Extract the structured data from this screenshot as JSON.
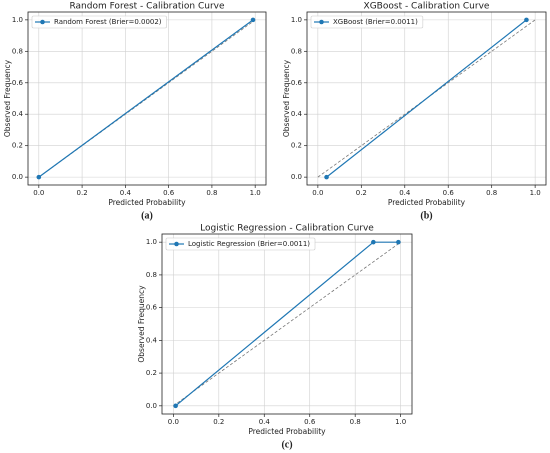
{
  "chart_data": [
    {
      "type": "line",
      "title": "Random Forest - Calibration Curve",
      "xlabel": "Predicted Probability",
      "ylabel": "Observed Frequency",
      "panel_label": "(a)",
      "x": [
        0.0,
        0.99
      ],
      "series": [
        {
          "name": "Random Forest (Brier=0.0002)",
          "color": "#1f77b4",
          "values": [
            0.0,
            1.0
          ]
        }
      ],
      "reference": {
        "x": [
          0,
          1
        ],
        "values": [
          0,
          1
        ],
        "color": "#777777"
      },
      "xlim": [
        -0.05,
        1.05
      ],
      "ylim": [
        -0.05,
        1.05
      ],
      "xticks": [
        {
          "value": 0,
          "label": "0.0"
        },
        0.2,
        0.4,
        0.6,
        0.8,
        {
          "value": 1,
          "label": "1.0"
        }
      ],
      "yticks": [
        {
          "value": 0,
          "label": "0.0"
        },
        0.2,
        0.4,
        0.6,
        0.8,
        {
          "value": 1,
          "label": "1.0"
        }
      ],
      "grid": true,
      "legend": "upper-left"
    },
    {
      "type": "line",
      "title": "XGBoost - Calibration Curve",
      "xlabel": "Predicted Probability",
      "ylabel": "Observed Frequency",
      "panel_label": "(b)",
      "x": [
        0.04,
        0.96
      ],
      "series": [
        {
          "name": "XGBoost (Brier=0.0011)",
          "color": "#1f77b4",
          "values": [
            0.0,
            1.0
          ]
        }
      ],
      "reference": {
        "x": [
          0,
          1
        ],
        "values": [
          0,
          1
        ],
        "color": "#777777"
      },
      "xlim": [
        -0.05,
        1.05
      ],
      "ylim": [
        -0.05,
        1.05
      ],
      "xticks": [
        {
          "value": 0,
          "label": "0.0"
        },
        0.2,
        0.4,
        0.6,
        0.8,
        {
          "value": 1,
          "label": "1.0"
        }
      ],
      "yticks": [
        {
          "value": 0,
          "label": "0.0"
        },
        0.2,
        0.4,
        0.6,
        0.8,
        {
          "value": 1,
          "label": "1.0"
        }
      ],
      "grid": true,
      "legend": "upper-left"
    },
    {
      "type": "line",
      "title": "Logistic Regression - Calibration Curve",
      "xlabel": "Predicted Probability",
      "ylabel": "Observed Frequency",
      "panel_label": "(c)",
      "x": [
        0.01,
        0.88,
        0.99
      ],
      "series": [
        {
          "name": "Logistic Regression (Brier=0.0011)",
          "color": "#1f77b4",
          "values": [
            0.0,
            1.0,
            1.0
          ]
        }
      ],
      "reference": {
        "x": [
          0,
          1
        ],
        "values": [
          0,
          1
        ],
        "color": "#777777"
      },
      "xlim": [
        -0.05,
        1.05
      ],
      "ylim": [
        -0.05,
        1.05
      ],
      "xticks": [
        {
          "value": 0,
          "label": "0.0"
        },
        0.2,
        0.4,
        0.6,
        0.8,
        {
          "value": 1,
          "label": "1.0"
        }
      ],
      "yticks": [
        {
          "value": 0,
          "label": "0.0"
        },
        0.2,
        0.4,
        0.6,
        0.8,
        {
          "value": 1,
          "label": "1.0"
        }
      ],
      "grid": true,
      "legend": "upper-left"
    }
  ]
}
